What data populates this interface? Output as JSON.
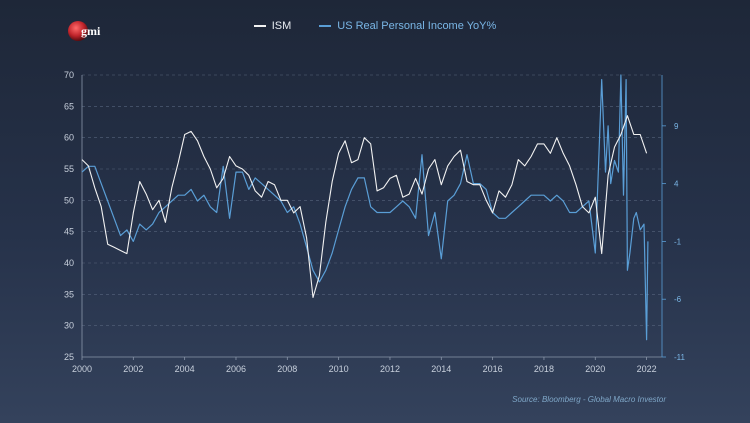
{
  "logo": {
    "text": "gmi",
    "color": "#c0242b"
  },
  "legend": [
    {
      "name": "ISM",
      "color": "#f2f2f2"
    },
    {
      "name": "US Real Personal Income YoY%",
      "color": "#5a9ed6"
    }
  ],
  "source": "Source: Bloomberg - Global Macro Investor",
  "chart_data": {
    "type": "line",
    "title": "",
    "xlabel": "",
    "ylabel": "",
    "xlim": [
      2000,
      2022.6
    ],
    "ylim": [
      25,
      70
    ],
    "y2lim": [
      -11,
      13.4
    ],
    "x_ticks": [
      2000,
      2002,
      2004,
      2006,
      2008,
      2010,
      2012,
      2014,
      2016,
      2018,
      2020,
      2022
    ],
    "y_ticks": [
      25,
      30,
      35,
      40,
      45,
      50,
      55,
      60,
      65,
      70
    ],
    "y2_ticks": [
      -11,
      -6,
      -1,
      4,
      9
    ],
    "grid": "horizontal dashed",
    "series": [
      {
        "name": "ISM",
        "axis": "left",
        "x": [
          2000.0,
          2000.25,
          2000.5,
          2000.75,
          2001.0,
          2001.25,
          2001.5,
          2001.75,
          2002.0,
          2002.25,
          2002.5,
          2002.75,
          2003.0,
          2003.25,
          2003.5,
          2003.75,
          2004.0,
          2004.25,
          2004.5,
          2004.75,
          2005.0,
          2005.25,
          2005.5,
          2005.75,
          2006.0,
          2006.25,
          2006.5,
          2006.75,
          2007.0,
          2007.25,
          2007.5,
          2007.75,
          2008.0,
          2008.25,
          2008.5,
          2008.75,
          2009.0,
          2009.25,
          2009.5,
          2009.75,
          2010.0,
          2010.25,
          2010.5,
          2010.75,
          2011.0,
          2011.25,
          2011.5,
          2011.75,
          2012.0,
          2012.25,
          2012.5,
          2012.75,
          2013.0,
          2013.25,
          2013.5,
          2013.75,
          2014.0,
          2014.25,
          2014.5,
          2014.75,
          2015.0,
          2015.25,
          2015.5,
          2015.75,
          2016.0,
          2016.25,
          2016.5,
          2016.75,
          2017.0,
          2017.25,
          2017.5,
          2017.75,
          2018.0,
          2018.25,
          2018.5,
          2018.75,
          2019.0,
          2019.25,
          2019.5,
          2019.75,
          2020.0,
          2020.25,
          2020.5,
          2020.75,
          2021.0,
          2021.25,
          2021.5,
          2021.75,
          2022.0
        ],
        "values": [
          56.5,
          55.5,
          52.0,
          49.0,
          43.0,
          42.5,
          42.0,
          41.5,
          48.0,
          53.0,
          51.0,
          48.5,
          50.0,
          46.5,
          52.0,
          56.0,
          60.5,
          61.0,
          59.5,
          57.0,
          55.0,
          52.0,
          53.5,
          57.0,
          55.5,
          55.0,
          54.0,
          51.5,
          50.5,
          53.0,
          52.5,
          50.0,
          50.0,
          48.0,
          49.0,
          44.0,
          34.5,
          38.0,
          46.5,
          53.0,
          57.5,
          59.5,
          56.0,
          56.5,
          60.0,
          59.0,
          51.5,
          52.0,
          53.5,
          54.0,
          50.5,
          51.0,
          53.5,
          51.0,
          55.0,
          56.5,
          52.5,
          55.5,
          57.0,
          58.0,
          53.0,
          52.5,
          52.5,
          50.0,
          48.0,
          51.5,
          50.5,
          52.5,
          56.5,
          55.5,
          57.0,
          59.0,
          59.0,
          57.5,
          60.0,
          57.5,
          55.5,
          52.5,
          49.0,
          48.0,
          50.5,
          41.5,
          54.0,
          58.5,
          60.5,
          63.5,
          60.5,
          60.5,
          57.5
        ]
      },
      {
        "name": "US Real Personal Income YoY%",
        "axis": "right",
        "x": [
          2000.0,
          2000.25,
          2000.5,
          2000.75,
          2001.0,
          2001.25,
          2001.5,
          2001.75,
          2002.0,
          2002.25,
          2002.5,
          2002.75,
          2003.0,
          2003.25,
          2003.5,
          2003.75,
          2004.0,
          2004.25,
          2004.5,
          2004.75,
          2005.0,
          2005.25,
          2005.5,
          2005.75,
          2006.0,
          2006.25,
          2006.5,
          2006.75,
          2007.0,
          2007.25,
          2007.5,
          2007.75,
          2008.0,
          2008.25,
          2008.5,
          2008.75,
          2009.0,
          2009.25,
          2009.5,
          2009.75,
          2010.0,
          2010.25,
          2010.5,
          2010.75,
          2011.0,
          2011.25,
          2011.5,
          2011.75,
          2012.0,
          2012.25,
          2012.5,
          2012.75,
          2013.0,
          2013.25,
          2013.5,
          2013.75,
          2014.0,
          2014.25,
          2014.5,
          2014.75,
          2015.0,
          2015.25,
          2015.5,
          2015.75,
          2016.0,
          2016.25,
          2016.5,
          2016.75,
          2017.0,
          2017.25,
          2017.5,
          2017.75,
          2018.0,
          2018.25,
          2018.5,
          2018.75,
          2019.0,
          2019.25,
          2019.5,
          2019.75,
          2020.0,
          2020.25,
          2020.4,
          2020.5,
          2020.6,
          2020.75,
          2020.9,
          2021.0,
          2021.1,
          2021.2,
          2021.25,
          2021.35,
          2021.5,
          2021.6,
          2021.75,
          2021.9,
          2022.0,
          2022.05
        ],
        "values": [
          5.0,
          5.5,
          5.5,
          4.0,
          2.5,
          1.0,
          -0.5,
          0.0,
          -1.0,
          0.5,
          0.0,
          0.5,
          1.5,
          2.0,
          2.5,
          3.0,
          3.0,
          3.5,
          2.5,
          3.0,
          2.0,
          1.5,
          5.5,
          1.0,
          5.0,
          5.0,
          3.5,
          4.5,
          4.0,
          3.5,
          3.0,
          2.5,
          1.5,
          2.0,
          0.5,
          -1.5,
          -3.5,
          -4.5,
          -3.5,
          -2.0,
          0.0,
          2.0,
          3.5,
          4.5,
          4.5,
          2.0,
          1.5,
          1.5,
          1.5,
          2.0,
          2.5,
          2.0,
          1.0,
          6.5,
          -0.5,
          1.5,
          -2.5,
          2.5,
          3.0,
          4.0,
          6.5,
          4.0,
          4.0,
          3.5,
          1.5,
          1.0,
          1.0,
          1.5,
          2.0,
          2.5,
          3.0,
          3.0,
          3.0,
          2.5,
          3.0,
          2.5,
          1.5,
          1.5,
          2.0,
          2.5,
          -2.0,
          13.0,
          5.0,
          9.0,
          4.0,
          6.0,
          5.0,
          14.0,
          3.0,
          13.0,
          -3.5,
          -2.0,
          1.0,
          1.5,
          0.0,
          0.5,
          -9.5,
          -1.0
        ]
      }
    ]
  }
}
